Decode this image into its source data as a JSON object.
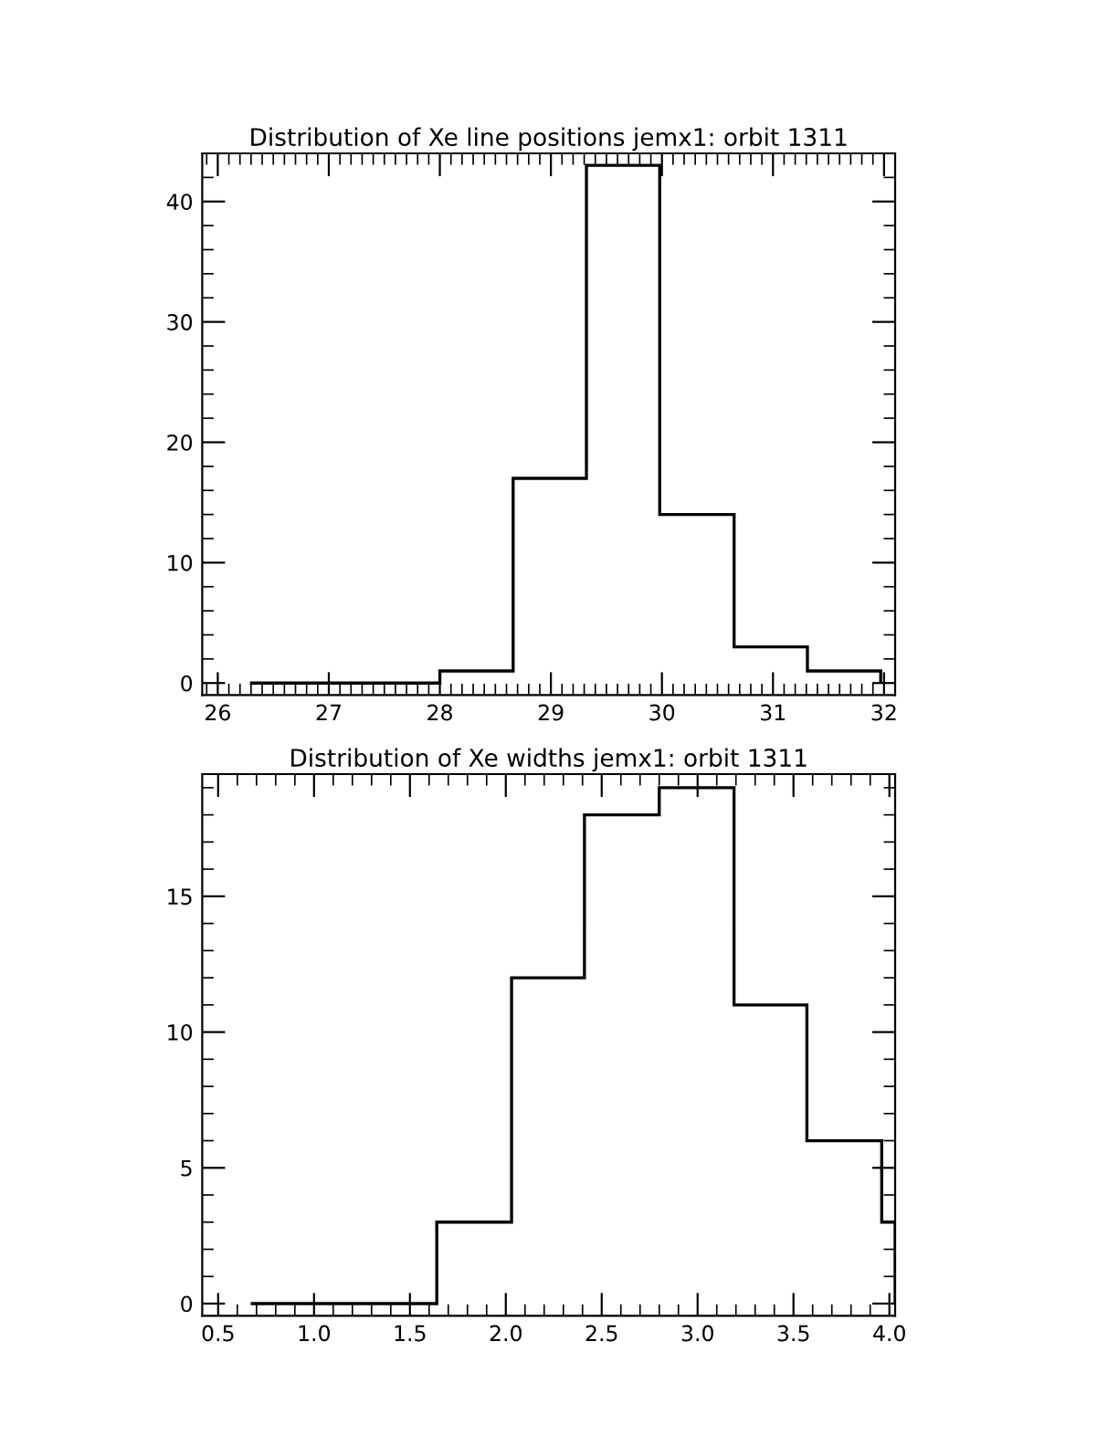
{
  "chart_data": [
    {
      "type": "histogram",
      "title": "Distribution of Xe line positions jemx1: orbit 1311",
      "bins": [
        26.29,
        28.0,
        28.66,
        29.32,
        29.98,
        30.65,
        31.31,
        31.97
      ],
      "values": [
        0,
        1,
        17,
        43,
        14,
        3,
        1
      ],
      "color": "#000000",
      "xlim": [
        25.86,
        32.1
      ],
      "ylim": [
        -1,
        44
      ],
      "xticks": [
        26,
        27,
        28,
        29,
        30,
        31,
        32
      ],
      "yticks": [
        0,
        10,
        20,
        30,
        40
      ],
      "grid": false
    },
    {
      "type": "histogram",
      "title": "Distribution of Xe widths jemx1: orbit 1311",
      "bins": [
        0.67,
        1.64,
        2.03,
        2.41,
        2.8,
        3.19,
        3.57,
        3.96,
        4.03
      ],
      "values": [
        0,
        3,
        12,
        18,
        19,
        11,
        6,
        3
      ],
      "color": "#000000",
      "xlim": [
        0.417,
        4.03
      ],
      "ylim": [
        -0.45,
        19.5
      ],
      "xticks": [
        {
          "value": 0.5,
          "label": "0.5"
        },
        {
          "value": 1.0,
          "label": "1.0"
        },
        {
          "value": 1.5,
          "label": "1.5"
        },
        {
          "value": 2.0,
          "label": "2.0"
        },
        {
          "value": 2.5,
          "label": "2.5"
        },
        {
          "value": 3.0,
          "label": "3.0"
        },
        {
          "value": 3.5,
          "label": "3.5"
        },
        {
          "value": 4.0,
          "label": "4.0"
        }
      ],
      "yticks": [
        0,
        5,
        10,
        15
      ],
      "grid": false
    }
  ]
}
